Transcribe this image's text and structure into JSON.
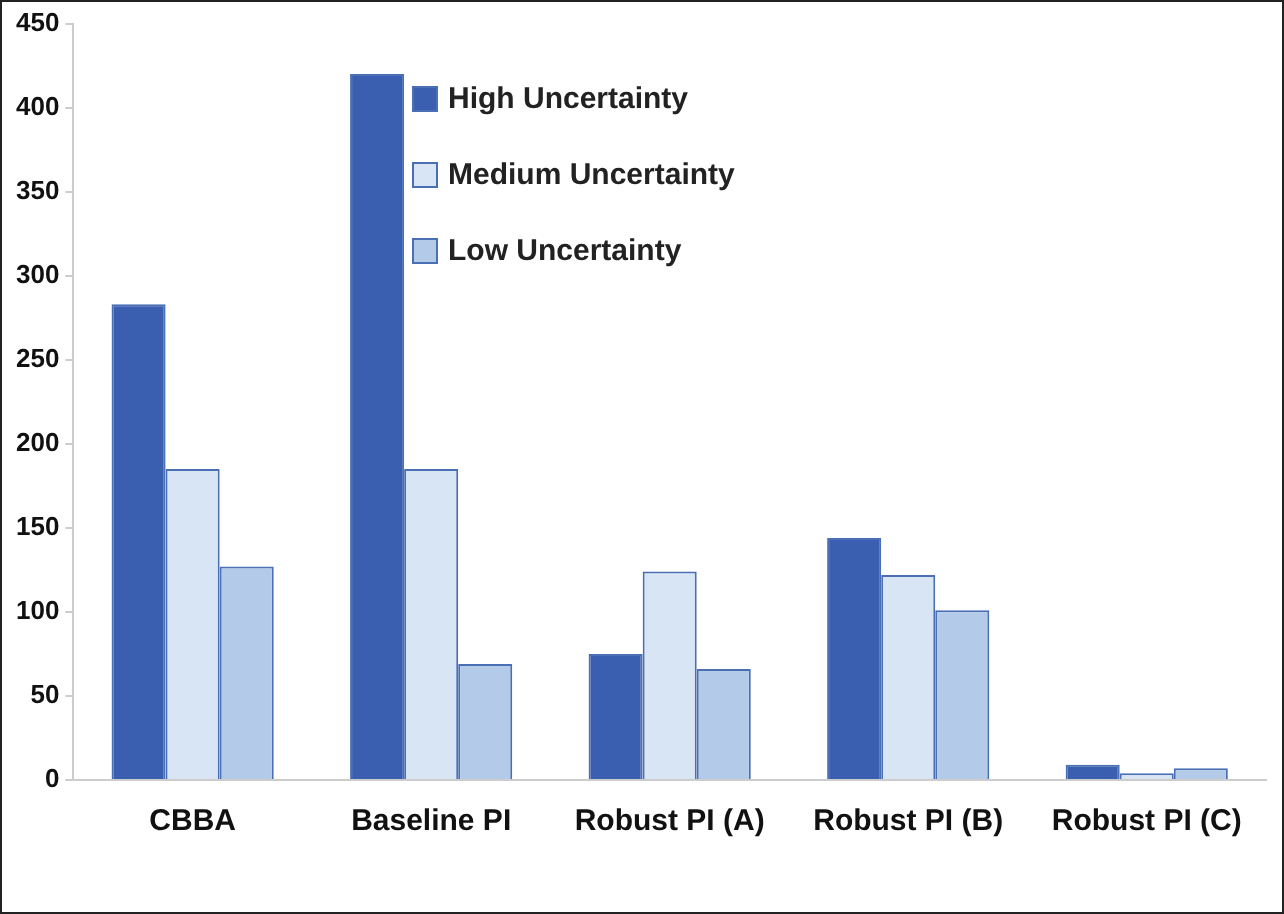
{
  "chart_data": {
    "type": "bar",
    "categories": [
      "CBBA",
      "Baseline PI",
      "Robust PI (A)",
      "Robust PI (B)",
      "Robust PI (C)"
    ],
    "series": [
      {
        "name": "High Uncertainty",
        "color": "#3a5fb0",
        "values": [
          283,
          420,
          75,
          144,
          9
        ]
      },
      {
        "name": "Medium Uncertainty",
        "color": "#d8e5f5",
        "values": [
          185,
          185,
          124,
          122,
          4
        ]
      },
      {
        "name": "Low Uncertainty",
        "color": "#b3cae8",
        "values": [
          127,
          69,
          66,
          101,
          7
        ]
      }
    ],
    "ylim": [
      0,
      450
    ],
    "yticks": [
      0,
      50,
      100,
      150,
      200,
      250,
      300,
      350,
      400,
      450
    ],
    "grid": false,
    "legend": "top"
  }
}
